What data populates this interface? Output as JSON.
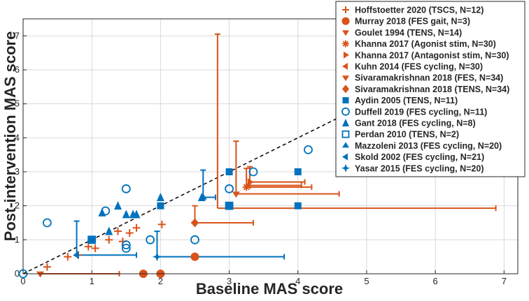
{
  "chart_data": {
    "type": "scatter",
    "xlabel": "Baseline MAS score",
    "ylabel": "Post-intervention MAS score",
    "xlim": [
      0,
      7.2
    ],
    "ylim": [
      0,
      7.5
    ],
    "xticks": [
      "0",
      "1",
      "2",
      "3",
      "4",
      "5",
      "6",
      "7"
    ],
    "yticks": [
      "0",
      "1",
      "2",
      "3",
      "4",
      "5",
      "6",
      "7"
    ],
    "grid": true,
    "legend_position": "top-right",
    "identity_line": {
      "style": "dashed",
      "color": "#000000"
    },
    "colors": {
      "orange": "#D95319",
      "blue": "#0072BD"
    },
    "series": [
      {
        "name": "Hoffstoetter 2020 (TSCS, N=12)",
        "marker": "plus",
        "color": "#D95319",
        "points": [
          [
            0.35,
            0.2
          ],
          [
            0.65,
            0.5
          ],
          [
            0.8,
            0.55
          ],
          [
            0.95,
            0.8
          ],
          [
            1.05,
            0.75
          ],
          [
            1.25,
            1.0
          ],
          [
            1.38,
            1.25
          ],
          [
            1.45,
            0.95
          ],
          [
            1.55,
            1.2
          ],
          [
            1.65,
            1.35
          ],
          [
            2.02,
            1.45
          ],
          [
            2.5,
            1.5
          ]
        ]
      },
      {
        "name": "Murray 2018 (FES gait, N=3)",
        "marker": "circle-filled",
        "color": "#D95319",
        "points": [
          [
            1.75,
            0.0
          ],
          [
            2.0,
            0.0
          ],
          [
            2.5,
            0.5
          ]
        ]
      },
      {
        "name": "Goulet 1994 (TENS, N=14)",
        "marker": "tri-down",
        "color": "#D95319",
        "points": [
          [
            0.25,
            0.0
          ]
        ],
        "errors": [
          {
            "dir": "right",
            "to": 1.4
          }
        ]
      },
      {
        "name": "Khanna 2017 (Agonist stim, N=30)",
        "marker": "star",
        "color": "#D95319",
        "points": [
          [
            3.25,
            2.55
          ]
        ],
        "errors": [
          {
            "dir": "up",
            "to": 3.1
          },
          {
            "dir": "right",
            "to": 4.2
          }
        ]
      },
      {
        "name": "Khanna 2017 (Antagonist stim, N=30)",
        "marker": "tri-right",
        "color": "#D95319",
        "points": [
          [
            3.3,
            2.7
          ]
        ],
        "errors": [
          {
            "dir": "up",
            "to": 3.15
          },
          {
            "dir": "right",
            "to": 4.1
          }
        ]
      },
      {
        "name": "Kuhn 2014 (FES cycling, N=30)",
        "marker": "tri-left",
        "color": "#D95319",
        "points": [
          [
            3.28,
            2.6
          ]
        ],
        "errors": [
          {
            "dir": "right",
            "to": 4.05
          }
        ]
      },
      {
        "name": "Sivaramakrishnan 2018 (FES, N=34)",
        "marker": "tri-down",
        "color": "#D95319",
        "points": [
          [
            3.1,
            2.35
          ]
        ],
        "errors": [
          {
            "dir": "up",
            "to": 3.9
          },
          {
            "dir": "right",
            "to": 4.6
          }
        ]
      },
      {
        "name": "Sivaramakrishnan 2018 (TENS, N=34)",
        "marker": "diamond",
        "color": "#D95319",
        "points": [
          [
            2.5,
            1.5
          ]
        ],
        "errors": [
          {
            "dir": "up",
            "to": 2.0
          },
          {
            "dir": "right",
            "to": 3.35
          }
        ]
      },
      {
        "name": "Aydin 2005 (TENS, N=11)",
        "marker": "square-filled",
        "color": "#0072BD",
        "points": [
          [
            1.0,
            1.0
          ],
          [
            2.0,
            2.0
          ],
          [
            3.0,
            2.0
          ],
          [
            3.0,
            3.0
          ],
          [
            4.0,
            2.0
          ],
          [
            4.0,
            3.0
          ]
        ]
      },
      {
        "name": "Duffell 2019 (FES cycling, N=11)",
        "marker": "circle-open",
        "color": "#0072BD",
        "points": [
          [
            0.0,
            0.0
          ],
          [
            0.35,
            1.5
          ],
          [
            1.2,
            1.85
          ],
          [
            1.5,
            2.5
          ],
          [
            1.5,
            0.85
          ],
          [
            1.85,
            1.0
          ],
          [
            2.5,
            1.0
          ],
          [
            3.0,
            2.5
          ],
          [
            3.35,
            3.0
          ],
          [
            4.15,
            3.65
          ],
          [
            1.5,
            0.75
          ]
        ]
      },
      {
        "name": "Gant 2018 (FES cycling, N=8)",
        "marker": "triangle-filled",
        "color": "#0072BD",
        "points": [
          [
            1.15,
            1.8
          ],
          [
            1.25,
            1.25
          ],
          [
            1.38,
            2.0
          ],
          [
            1.5,
            1.75
          ],
          [
            1.6,
            1.75
          ],
          [
            1.65,
            1.75
          ],
          [
            2.0,
            2.25
          ],
          [
            2.6,
            2.25
          ]
        ]
      },
      {
        "name": "Perdan 2010 (TENS, N=2)",
        "marker": "square-open",
        "color": "#0072BD",
        "points": [
          [
            1.0,
            1.0
          ],
          [
            3.0,
            2.0
          ]
        ]
      },
      {
        "name": "Mazzoleni 2013 (FES cycling, N=20)",
        "marker": "tri-up",
        "color": "#0072BD",
        "points": [
          [
            2.62,
            2.25
          ]
        ],
        "errors": [
          {
            "dir": "up",
            "to": 3.05
          },
          {
            "dir": "right",
            "to": 2.8
          }
        ]
      },
      {
        "name": "Skold 2002 (FES cycling, N=21)",
        "marker": "tri-left",
        "color": "#0072BD",
        "points": [
          [
            0.78,
            0.55
          ]
        ],
        "errors": [
          {
            "dir": "up",
            "to": 1.55
          },
          {
            "dir": "right",
            "to": 1.65
          }
        ]
      },
      {
        "name": "Yasar 2015 (FES cycling, N=20)",
        "marker": "star6",
        "color": "#0072BD",
        "points": [
          [
            1.95,
            0.5
          ]
        ],
        "errors": [
          {
            "dir": "up",
            "to": 1.25
          },
          {
            "dir": "right",
            "to": 3.8
          }
        ]
      }
    ],
    "extra_error_bars": [
      {
        "color": "#D95319",
        "x": 2.83,
        "y": 1.93,
        "up_to": 7.05,
        "right_to": 6.88
      }
    ]
  }
}
